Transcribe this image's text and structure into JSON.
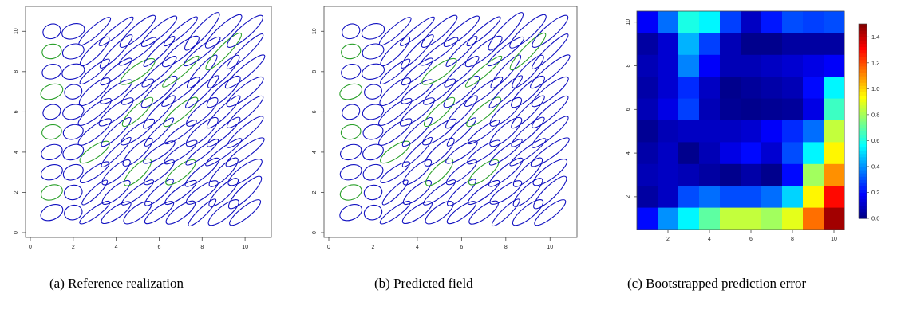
{
  "chart_data": [
    {
      "type": "scatter",
      "caption": "(a) Reference realization",
      "xlim": [
        0,
        11
      ],
      "ylim": [
        0,
        11
      ],
      "xticks": [
        "0",
        "2",
        "4",
        "6",
        "8",
        "10"
      ],
      "yticks": [
        "0",
        "2",
        "4",
        "6",
        "8",
        "10"
      ],
      "grid": false,
      "colors": {
        "default": "#1010c0",
        "highlight": "#2aa02a"
      },
      "highlight_cells": [
        [
          1,
          2
        ],
        [
          3,
          4
        ],
        [
          5,
          3
        ],
        [
          7,
          3
        ],
        [
          1,
          5
        ],
        [
          1,
          7
        ],
        [
          5,
          6
        ],
        [
          7,
          6
        ],
        [
          1,
          9
        ],
        [
          5,
          8
        ],
        [
          7,
          8
        ],
        [
          9,
          9
        ]
      ],
      "ellipses": {
        "grid_x": [
          1,
          2,
          3,
          4,
          5,
          6,
          7,
          8,
          9,
          10
        ],
        "grid_y": [
          1,
          2,
          3,
          4,
          5,
          6,
          7,
          8,
          9,
          10
        ],
        "description": "one anisotropic ellipse per grid node"
      }
    },
    {
      "type": "scatter",
      "caption": "(b) Predicted field",
      "xlim": [
        0,
        11
      ],
      "ylim": [
        0,
        11
      ],
      "xticks": [
        "0",
        "2",
        "4",
        "6",
        "8",
        "10"
      ],
      "yticks": [
        "0",
        "2",
        "4",
        "6",
        "8",
        "10"
      ],
      "grid": false,
      "colors": {
        "default": "#1010c0",
        "highlight": "#2aa02a"
      },
      "highlight_cells": [
        [
          1,
          2
        ],
        [
          3,
          4
        ],
        [
          5,
          3
        ],
        [
          7,
          3
        ],
        [
          1,
          5
        ],
        [
          1,
          7
        ],
        [
          5,
          6
        ],
        [
          7,
          6
        ],
        [
          1,
          9
        ],
        [
          5,
          8
        ],
        [
          7,
          8
        ],
        [
          9,
          9
        ]
      ]
    },
    {
      "type": "heatmap",
      "caption": "(c) Bootstrapped prediction error",
      "xticks": [
        "2",
        "4",
        "6",
        "8",
        "10"
      ],
      "yticks": [
        "2",
        "4",
        "6",
        "8",
        "10"
      ],
      "colorbar": {
        "min": 0.0,
        "max": 1.5,
        "ticks": [
          "0.0",
          "0.2",
          "0.4",
          "0.6",
          "0.8",
          "1.0",
          "1.2",
          "1.4"
        ],
        "colormap": "jet"
      },
      "rows_top_to_bottom": [
        [
          0.18,
          0.35,
          0.6,
          0.55,
          0.28,
          0.1,
          0.22,
          0.3,
          0.28,
          0.3
        ],
        [
          0.05,
          0.12,
          0.45,
          0.28,
          0.08,
          0.02,
          0.02,
          0.05,
          0.05,
          0.05
        ],
        [
          0.08,
          0.12,
          0.38,
          0.18,
          0.08,
          0.08,
          0.1,
          0.12,
          0.15,
          0.18
        ],
        [
          0.06,
          0.12,
          0.25,
          0.1,
          0.02,
          0.04,
          0.06,
          0.08,
          0.2,
          0.55
        ],
        [
          0.08,
          0.15,
          0.28,
          0.08,
          0.03,
          0.02,
          0.03,
          0.04,
          0.15,
          0.65
        ],
        [
          0.03,
          0.08,
          0.1,
          0.1,
          0.1,
          0.12,
          0.18,
          0.25,
          0.35,
          0.85
        ],
        [
          0.06,
          0.1,
          0.02,
          0.08,
          0.15,
          0.2,
          0.12,
          0.3,
          0.55,
          0.95
        ],
        [
          0.08,
          0.1,
          0.08,
          0.05,
          0.02,
          0.06,
          0.02,
          0.2,
          0.8,
          1.1
        ],
        [
          0.05,
          0.1,
          0.3,
          0.35,
          0.3,
          0.3,
          0.35,
          0.5,
          0.95,
          1.3
        ],
        [
          0.2,
          0.4,
          0.55,
          0.7,
          0.85,
          0.85,
          0.8,
          0.9,
          1.15,
          1.45
        ]
      ]
    }
  ]
}
